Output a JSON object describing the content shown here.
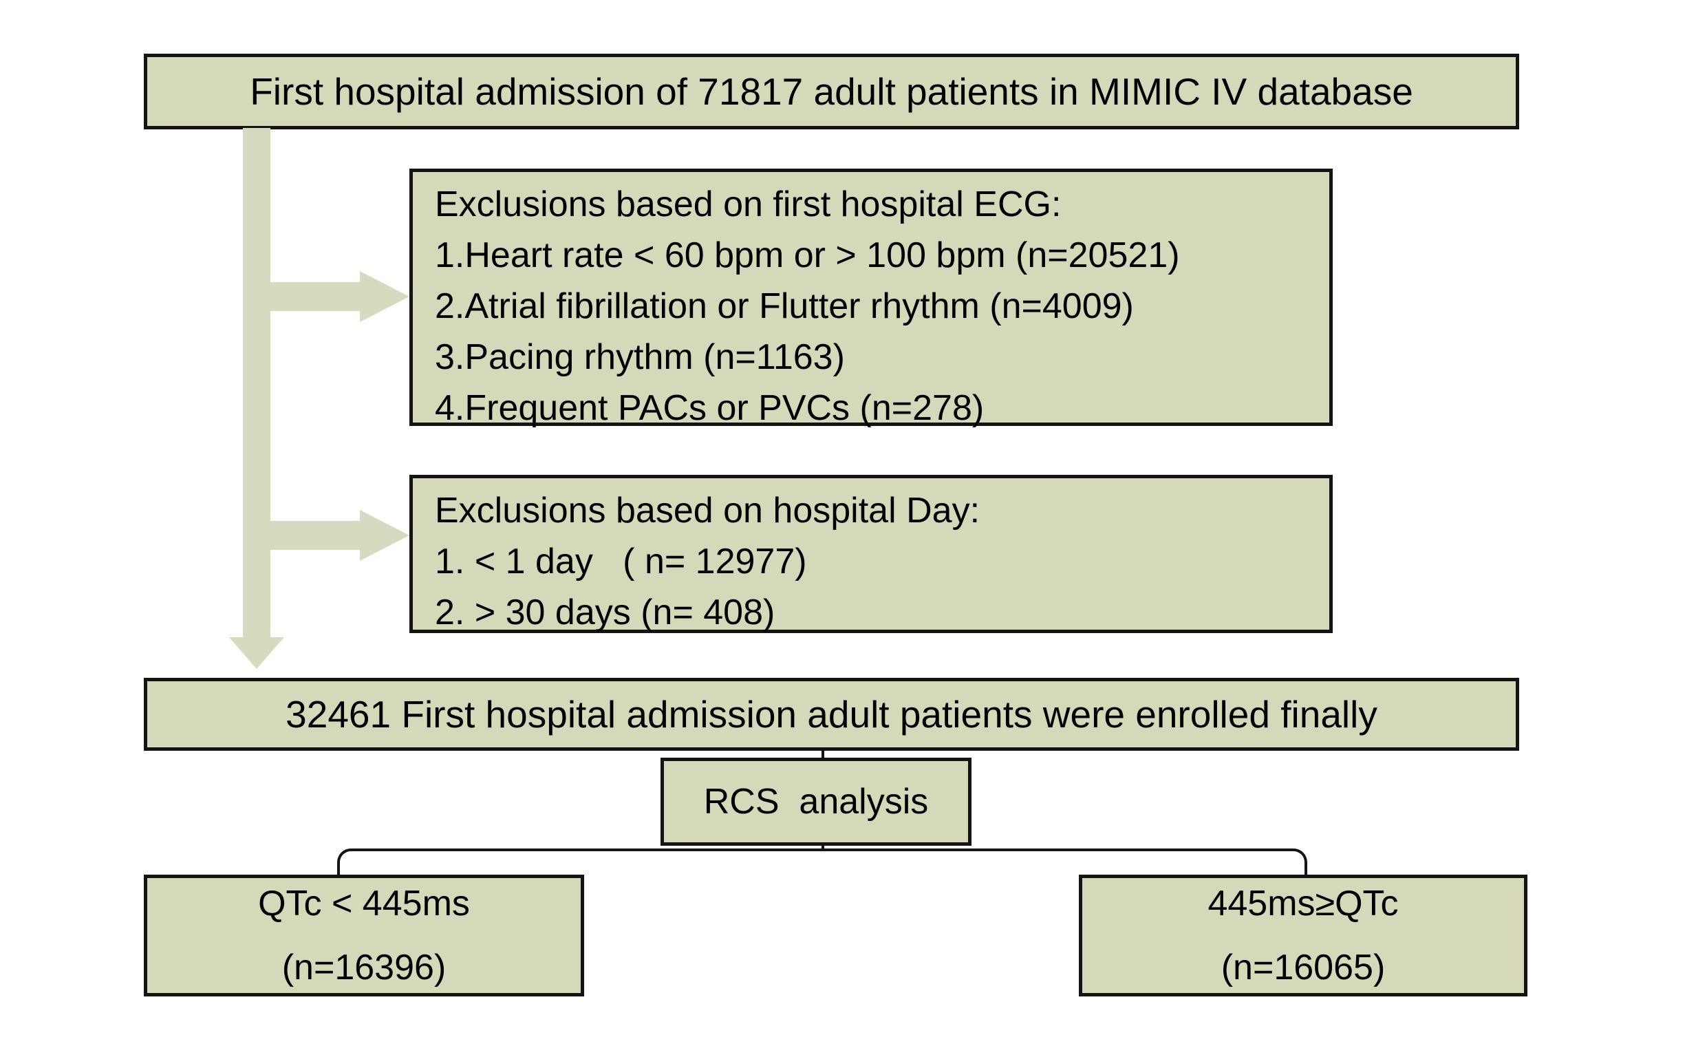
{
  "diagram": {
    "colors": {
      "box_fill": "#d6d8ba",
      "arrow_fill": "#d8dabf",
      "border": "#141414",
      "text": "#000000",
      "background": "#ffffff"
    },
    "box_top": {
      "text": "First hospital admission of 71817 adult patients in MIMIC IV database"
    },
    "box_ecg": {
      "title": "Exclusions based on first hospital ECG:",
      "items": [
        "1.Heart rate < 60 bpm or > 100 bpm (n=20521)",
        "2.Atrial fibrillation or Flutter rhythm (n=4009)",
        "3.Pacing rhythm (n=1163)",
        "4.Frequent PACs or PVCs (n=278)"
      ]
    },
    "box_day": {
      "title": "Exclusions based on hospital Day:",
      "items": [
        "1. < 1 day   ( n= 12977)",
        "2. > 30 days (n= 408)"
      ]
    },
    "box_enrolled": {
      "text": "32461 First hospital admission adult patients were enrolled finally"
    },
    "box_rcs": {
      "text": "RCS  analysis"
    },
    "box_qtc_low": {
      "line1": "QTc < 445ms",
      "line2": "(n=16396)"
    },
    "box_qtc_high": {
      "line1": "445ms≥QTc",
      "line2": "(n=16065)"
    }
  }
}
